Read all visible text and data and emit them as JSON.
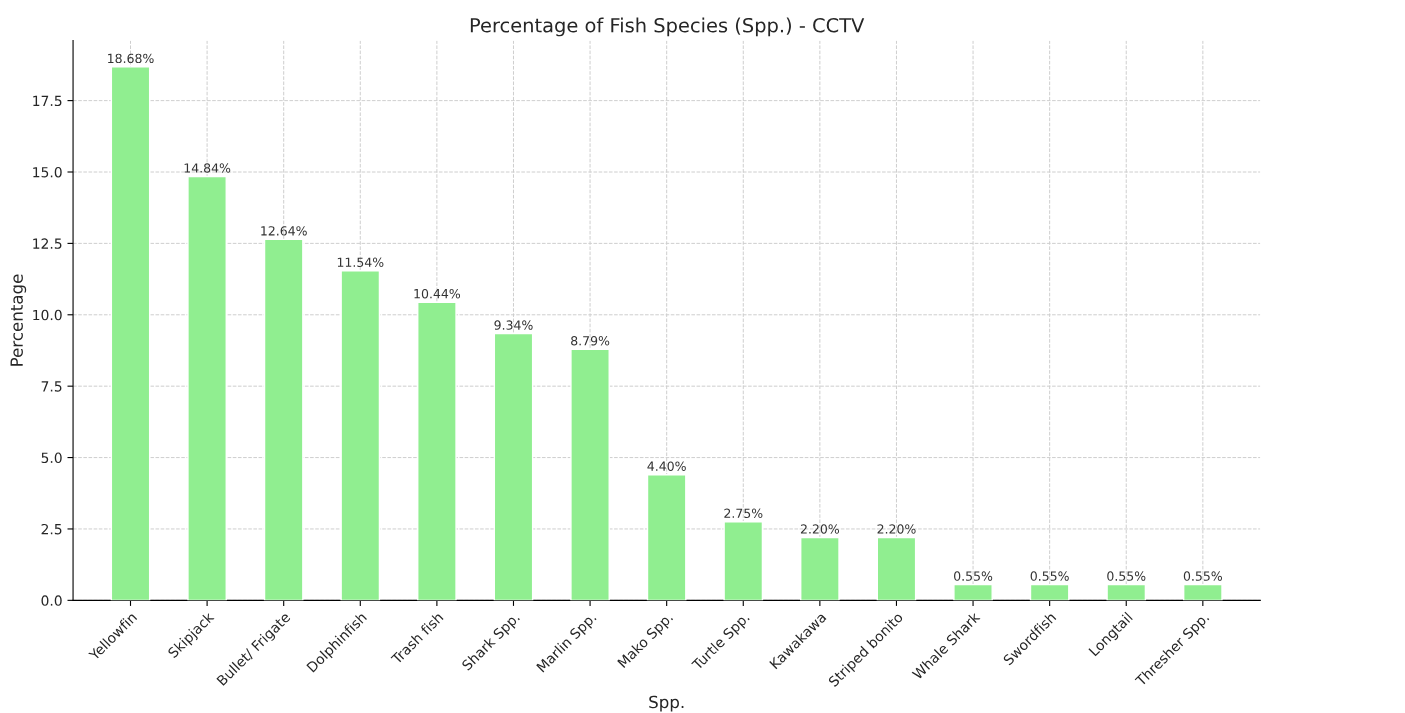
{
  "chart_data": {
    "type": "bar",
    "title": "Percentage of Fish Species (Spp.) - CCTV",
    "xlabel": "Spp.",
    "ylabel": "Percentage",
    "categories": [
      "Yellowfin",
      "Skipjack",
      "Bullet/ Frigate",
      "Dolphinfish",
      "Trash fish",
      "Shark Spp.",
      "Marlin Spp.",
      "Mako Spp.",
      "Turtle Spp.",
      "Kawakawa",
      "Striped bonito",
      "Whale Shark",
      "Swordfish",
      "Longtail",
      "Thresher Spp."
    ],
    "values": [
      18.68,
      14.84,
      12.64,
      11.54,
      10.44,
      9.34,
      8.79,
      4.4,
      2.75,
      2.2,
      2.2,
      0.55,
      0.55,
      0.55,
      0.55
    ],
    "value_labels": [
      "18.68%",
      "14.84%",
      "12.64%",
      "11.54%",
      "10.44%",
      "9.34%",
      "8.79%",
      "4.40%",
      "2.75%",
      "2.20%",
      "2.20%",
      "0.55%",
      "0.55%",
      "0.55%",
      "0.55%"
    ],
    "color": "#90ee90",
    "ylim": [
      0,
      19.6
    ],
    "yticks": [
      {
        "value": 0,
        "label": "0.0"
      },
      {
        "value": 2.5,
        "label": "2.5"
      },
      {
        "value": 5,
        "label": "5.0"
      },
      {
        "value": 7.5,
        "label": "7.5"
      },
      {
        "value": 10,
        "label": "10.0"
      },
      {
        "value": 12.5,
        "label": "12.5"
      },
      {
        "value": 15,
        "label": "15.0"
      },
      {
        "value": 17.5,
        "label": "17.5"
      }
    ],
    "grid": true
  }
}
